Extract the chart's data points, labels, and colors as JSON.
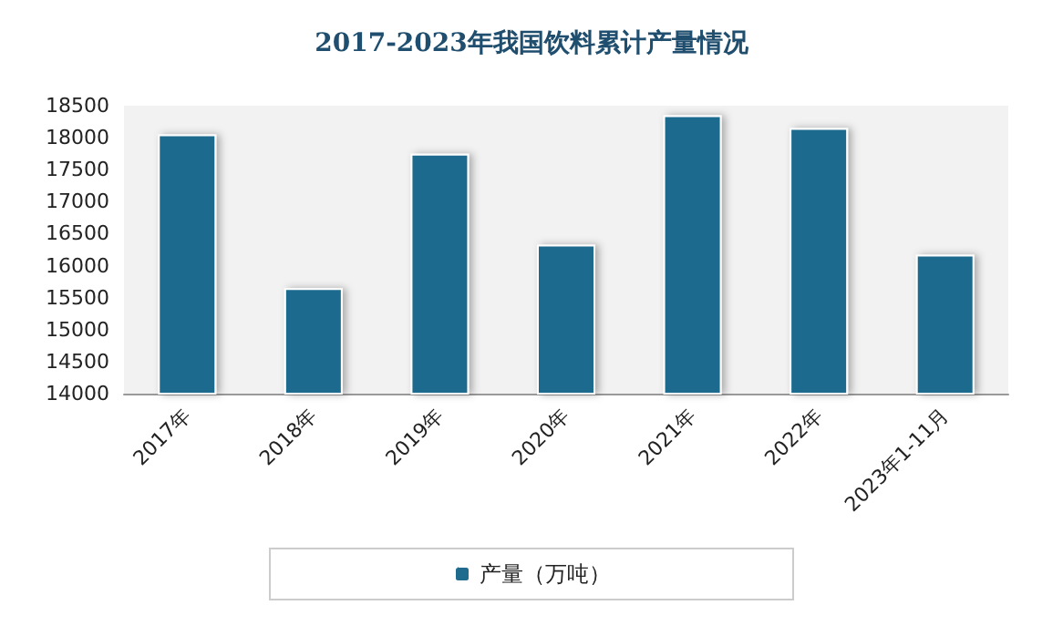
{
  "chart_data": {
    "type": "bar",
    "title": "2017-2023年我国饮料累计产量情况",
    "categories": [
      "2017年",
      "2018年",
      "2019年",
      "2020年",
      "2021年",
      "2022年",
      "2023年1-11月"
    ],
    "series": [
      {
        "name": "产量（万吨）",
        "color": "#1f6b8e",
        "values": [
          18050,
          15650,
          17750,
          16330,
          18350,
          18150,
          16170
        ]
      }
    ],
    "ylim": [
      14000,
      18500
    ],
    "yticks": [
      14000,
      14500,
      15000,
      15500,
      16000,
      16500,
      17000,
      17500,
      18000,
      18500
    ],
    "grid": false,
    "legend": "bottom"
  }
}
